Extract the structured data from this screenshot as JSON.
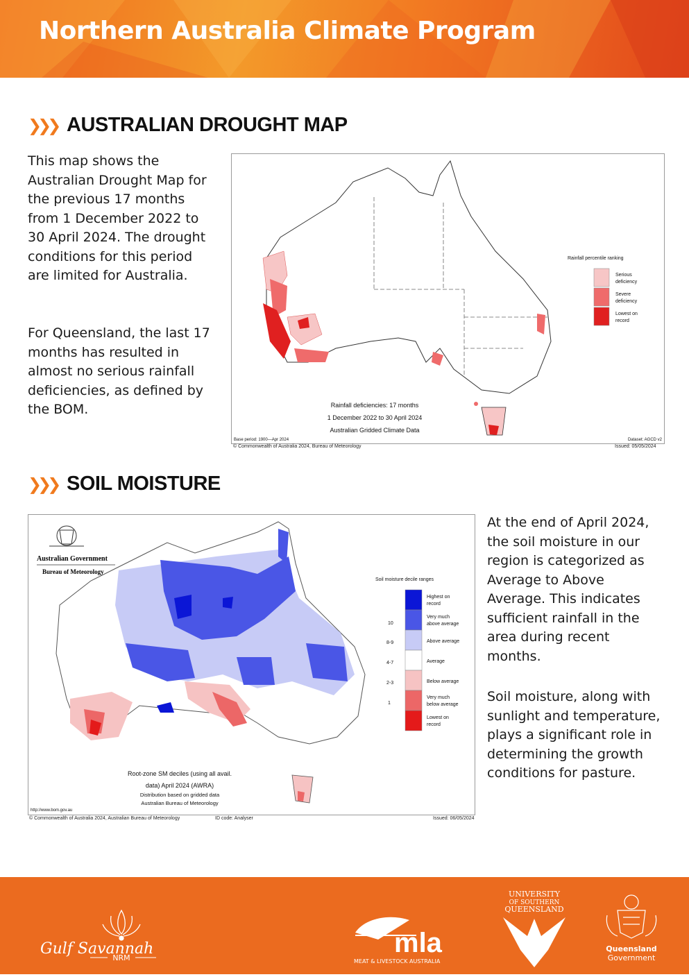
{
  "header": {
    "title": "Northern Australia Climate Program"
  },
  "drought": {
    "heading": "AUSTRALIAN DROUGHT MAP",
    "paragraphs": [
      "This map shows the Australian Drought Map for the previous 17 months from 1 December 2022 to 30 April 2024. The drought conditions for this period are limited for Australia.",
      "For Queensland, the last 17 months has resulted in almost no serious rainfall deficiencies, as defined by the BOM."
    ],
    "map": {
      "legend_title": "Rainfall percentile ranking",
      "legend": [
        {
          "label_1": "Serious",
          "label_2": "deficiency",
          "color": "#f7c6c6"
        },
        {
          "label_1": "Severe",
          "label_2": "deficiency",
          "color": "#ef6b6b"
        },
        {
          "label_1": "Lowest on",
          "label_2": "record",
          "color": "#e02020"
        }
      ],
      "title_1": "Rainfall deficiencies: 17 months",
      "title_2": "1 December 2022 to 30 April 2024",
      "title_3": "Australian Gridded Climate Data",
      "base_period": "Base period: 1900—Apr 2024",
      "dataset": "Dataset: AGCD v2",
      "copyright": "© Commonwealth of Australia 2024, Bureau of Meteorology",
      "issued": "Issued: 05/05/2024"
    }
  },
  "soil": {
    "heading": "SOIL MOISTURE",
    "paragraphs": [
      "At the end of April 2024, the soil moisture in our region is categorized as Average to Above Average. This indicates sufficient rainfall in the area during recent months.",
      "Soil moisture, along with sunlight and temperature, plays a significant role in determining the growth conditions for pasture."
    ],
    "map": {
      "agency_1": "Australian Government",
      "agency_2": "Bureau of Meteorology",
      "legend_title": "Soil moisture decile ranges",
      "legend": [
        {
          "decile": "",
          "label_1": "Highest on",
          "label_2": "record",
          "color": "#0b16d6"
        },
        {
          "decile": "10",
          "label_1": "Very much",
          "label_2": "above average",
          "color": "#4a56e6"
        },
        {
          "decile": "8-9",
          "label_1": "Above average",
          "label_2": "",
          "color": "#c7cbf6"
        },
        {
          "decile": "4-7",
          "label_1": "Average",
          "label_2": "",
          "color": "#ffffff"
        },
        {
          "decile": "2-3",
          "label_1": "Below average",
          "label_2": "",
          "color": "#f6c3c3"
        },
        {
          "decile": "1",
          "label_1": "Very much",
          "label_2": "below average",
          "color": "#ec6767"
        },
        {
          "decile": "",
          "label_1": "Lowest on",
          "label_2": "record",
          "color": "#e41a1a"
        }
      ],
      "title_1": "Root-zone SM deciles (using all avail.",
      "title_2": "data) April 2024 (AWRA)",
      "title_3": "Distribution based on gridded data",
      "title_4": "Australian Bureau of Meteorology",
      "url": "http://www.bom.gov.au",
      "copyright": "© Commonwealth of Australia 2024, Australian Bureau of Meteorology",
      "id_code": "ID code: Analyser",
      "issued": "Issued: 06/05/2024"
    }
  },
  "footer": {
    "logos": {
      "gulf": {
        "name": "Gulf Savannah",
        "sub": "NRM"
      },
      "mla": {
        "name": "mla",
        "sub": "MEAT & LIVESTOCK AUSTRALIA"
      },
      "usq": {
        "line_1": "UNIVERSITY",
        "line_2": "OF SOUTHERN",
        "line_3": "QUEENSLAND"
      },
      "qld": {
        "line_1": "Queensland",
        "line_2": "Government"
      }
    }
  }
}
